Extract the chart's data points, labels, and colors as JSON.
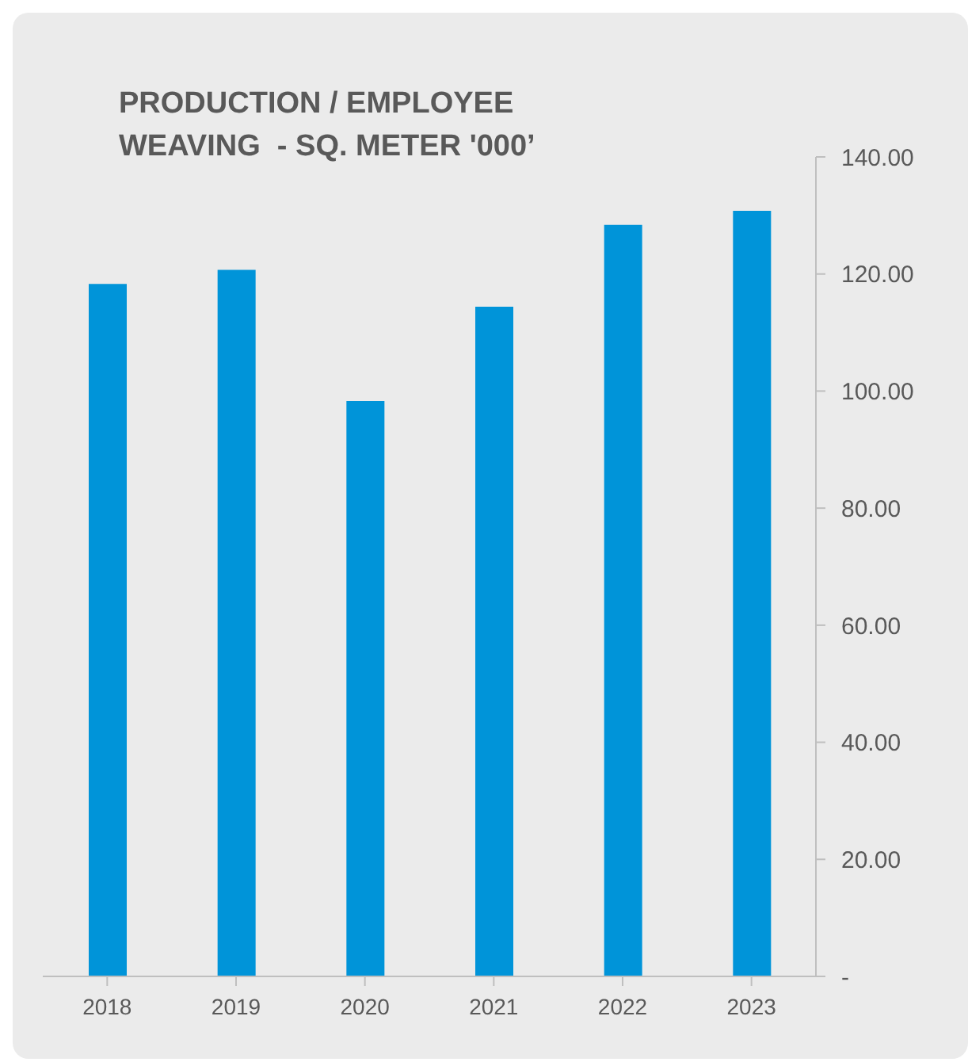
{
  "chart_data": {
    "type": "bar",
    "title": "PRODUCTION / EMPLOYEE\nWEAVING  - SQ. METER '000’",
    "categories": [
      "2018",
      "2019",
      "2020",
      "2021",
      "2022",
      "2023"
    ],
    "values": [
      118.3,
      120.7,
      98.3,
      114.4,
      128.4,
      130.8
    ],
    "color": "#0094d9",
    "ylim": [
      0,
      140
    ],
    "yticks": [
      {
        "value": 0,
        "label": "-"
      },
      {
        "value": 20,
        "label": "20.00"
      },
      {
        "value": 40,
        "label": "40.00"
      },
      {
        "value": 60,
        "label": "60.00"
      },
      {
        "value": 80,
        "label": "80.00"
      },
      {
        "value": 100,
        "label": "100.00"
      },
      {
        "value": 120,
        "label": "120.00"
      },
      {
        "value": 140,
        "label": "140.00"
      }
    ],
    "grid": false,
    "legend": false
  }
}
